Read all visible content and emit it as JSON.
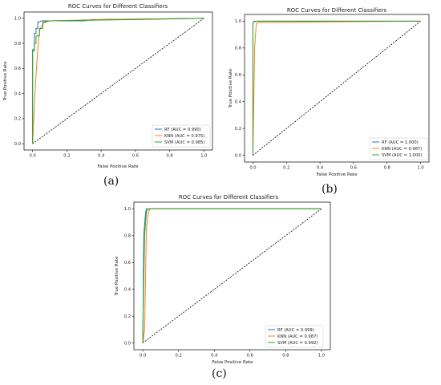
{
  "captions": {
    "a": "(a)",
    "b": "(b)",
    "c": "(c)"
  },
  "series_colors": [
    "#1f77b4",
    "#ff7f0e",
    "#2ca02c"
  ],
  "chart_data": [
    {
      "id": "a",
      "type": "line",
      "title": "ROC Curves for Different Classifiers",
      "xlabel": "False Positive Rate",
      "ylabel": "True Positive Rate",
      "xlim": [
        -0.05,
        1.05
      ],
      "ylim": [
        -0.05,
        1.05
      ],
      "xticks": [
        "0.0",
        "0.2",
        "0.4",
        "0.6",
        "0.8",
        "1.0"
      ],
      "yticks": [
        "0.0",
        "0.2",
        "0.4",
        "0.6",
        "0.8",
        "1.0"
      ],
      "grid": false,
      "legend_position": "bottom-right",
      "series": [
        {
          "name": "RF (AUC = 0.990)",
          "x": [
            0,
            0,
            0.01,
            0.01,
            0.02,
            0.02,
            0.03,
            0.03,
            0.04,
            0.05,
            0.1,
            0.3,
            0.35,
            1.0
          ],
          "y": [
            0,
            0.75,
            0.75,
            0.88,
            0.88,
            0.92,
            0.92,
            0.97,
            0.97,
            0.98,
            0.98,
            0.98,
            0.99,
            1.0
          ]
        },
        {
          "name": "KNN (AUC = 0.975)",
          "x": [
            0,
            0.01,
            0.02,
            0.03,
            0.04,
            0.06,
            0.1,
            0.4,
            1.0
          ],
          "y": [
            0,
            0.3,
            0.55,
            0.75,
            0.9,
            0.96,
            0.98,
            0.99,
            1.0
          ]
        },
        {
          "name": "SVM (AUC = 0.985)",
          "x": [
            0,
            0,
            0.01,
            0.01,
            0.02,
            0.02,
            0.04,
            0.04,
            0.06,
            0.06,
            0.1,
            0.6,
            1.0
          ],
          "y": [
            0,
            0.74,
            0.74,
            0.8,
            0.8,
            0.86,
            0.86,
            0.92,
            0.92,
            0.97,
            0.98,
            0.99,
            1.0
          ]
        }
      ]
    },
    {
      "id": "b",
      "type": "line",
      "title": "ROC Curves for Different Classifiers",
      "xlabel": "False Positive Rate",
      "ylabel": "True Positive Rate",
      "xlim": [
        -0.05,
        1.05
      ],
      "ylim": [
        -0.05,
        1.05
      ],
      "xticks": [
        "0.0",
        "0.2",
        "0.4",
        "0.6",
        "0.8",
        "1.0"
      ],
      "yticks": [
        "0.0",
        "0.2",
        "0.4",
        "0.6",
        "0.8",
        "1.0"
      ],
      "grid": false,
      "legend_position": "bottom-right",
      "series": [
        {
          "name": "RF (AUC = 1.000)",
          "x": [
            0,
            0,
            0.02,
            1.0
          ],
          "y": [
            0,
            0.99,
            1.0,
            1.0
          ]
        },
        {
          "name": "KNN (AUC = 0.987)",
          "x": [
            0,
            0.01,
            0.02,
            0.03,
            1.0
          ],
          "y": [
            0,
            0.8,
            0.98,
            0.99,
            1.0
          ]
        },
        {
          "name": "SVM (AUC = 1.000)",
          "x": [
            0,
            0,
            0.01,
            1.0
          ],
          "y": [
            0,
            0.99,
            1.0,
            1.0
          ]
        }
      ]
    },
    {
      "id": "c",
      "type": "line",
      "title": "ROC Curves for Different Classifiers",
      "xlabel": "False Positive Rate",
      "ylabel": "True Positive Rate",
      "xlim": [
        -0.05,
        1.05
      ],
      "ylim": [
        -0.05,
        1.05
      ],
      "xticks": [
        "0.0",
        "0.2",
        "0.4",
        "0.6",
        "0.8",
        "1.0"
      ],
      "yticks": [
        "0.0",
        "0.2",
        "0.4",
        "0.6",
        "0.8",
        "1.0"
      ],
      "grid": false,
      "legend_position": "bottom-right",
      "series": [
        {
          "name": "RF (AUC = 0.999)",
          "x": [
            0,
            0.005,
            0.01,
            0.015,
            0.02,
            1.0
          ],
          "y": [
            0,
            0.8,
            0.88,
            0.97,
            1.0,
            1.0
          ]
        },
        {
          "name": "KNN (AUC = 0.987)",
          "x": [
            0,
            0.01,
            0.02,
            0.03,
            0.04,
            1.0
          ],
          "y": [
            0,
            0.1,
            0.85,
            0.97,
            1.0,
            1.0
          ]
        },
        {
          "name": "SVM (AUC = 0.992)",
          "x": [
            0,
            0,
            0.01,
            0.02,
            0.03,
            1.0
          ],
          "y": [
            0,
            0.1,
            0.8,
            0.98,
            1.0,
            1.0
          ]
        }
      ]
    }
  ]
}
